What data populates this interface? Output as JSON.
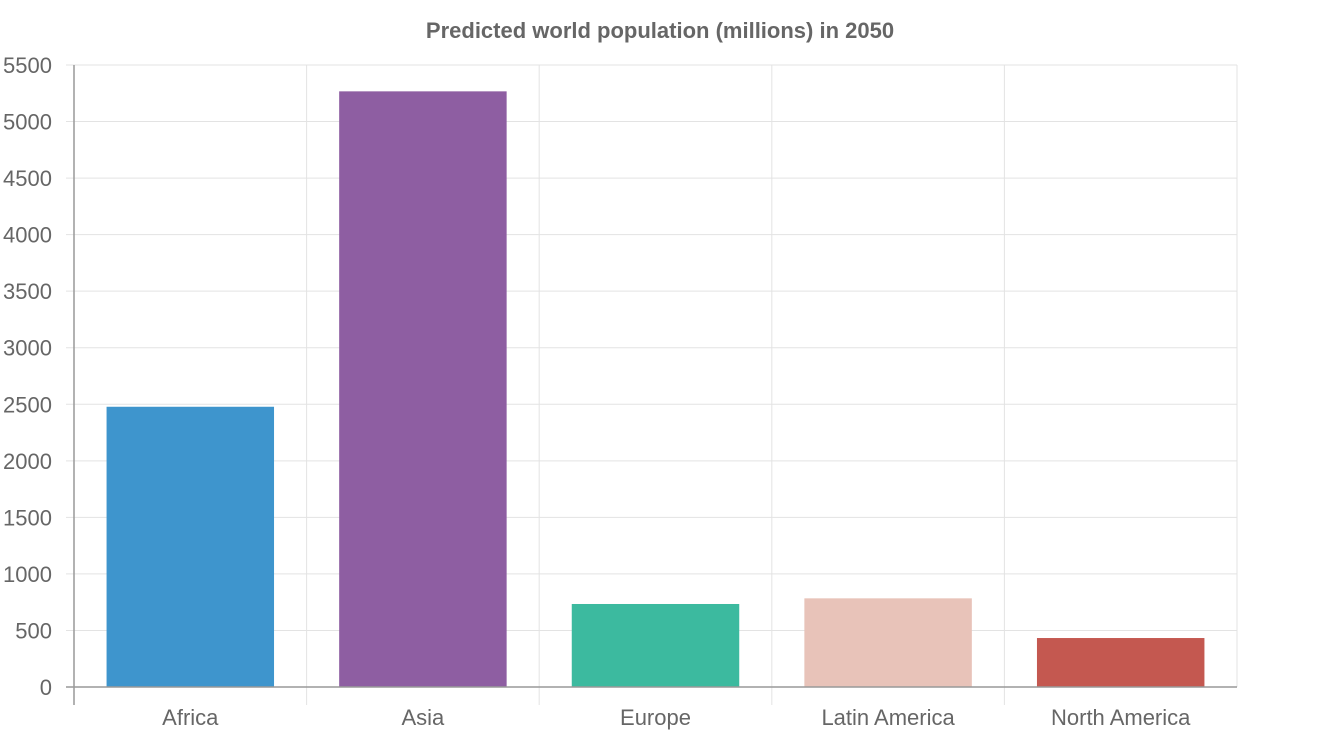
{
  "chart_data": {
    "type": "bar",
    "title": "Predicted world population (millions) in 2050",
    "categories": [
      "Africa",
      "Asia",
      "Europe",
      "Latin America",
      "North America"
    ],
    "values": [
      2478,
      5267,
      734,
      784,
      433
    ],
    "colors": [
      "#3e95cd",
      "#8e5ea2",
      "#3cba9f",
      "#e8c3b9",
      "#c45850"
    ],
    "ylim": [
      0,
      5500
    ],
    "yticks": [
      0,
      500,
      1000,
      1500,
      2000,
      2500,
      3000,
      3500,
      4000,
      4500,
      5000,
      5500
    ],
    "xlabel": "",
    "ylabel": "",
    "grid": true,
    "legend": "none"
  }
}
